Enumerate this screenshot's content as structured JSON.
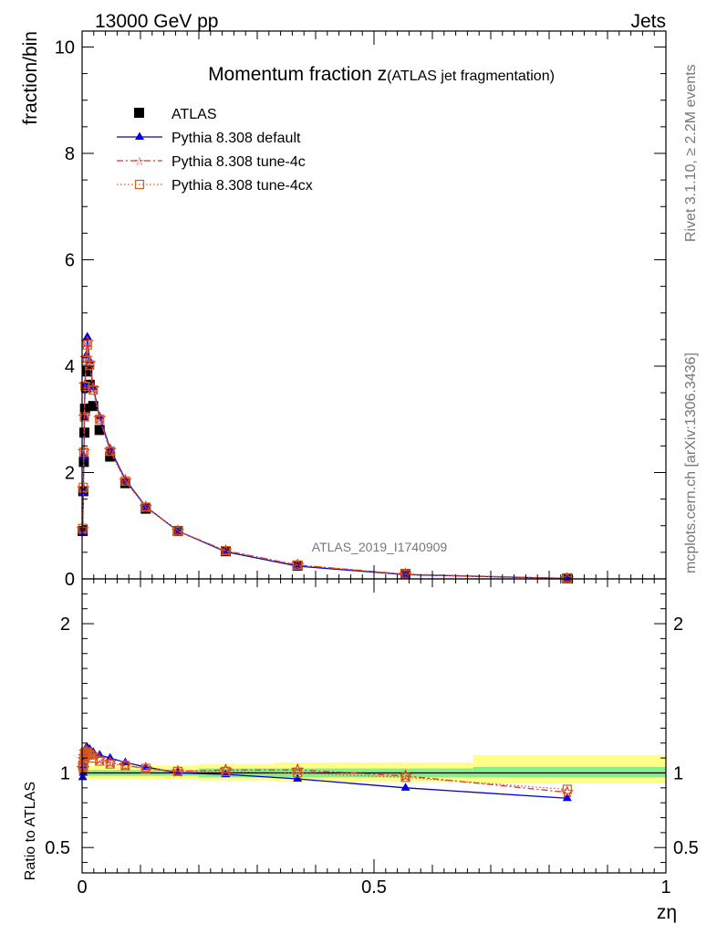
{
  "header": {
    "left": "13000 GeV pp",
    "right": "Jets"
  },
  "side_labels": {
    "rivet": "Rivet 3.1.10, ≥ 2.2M events",
    "mcplots": "mcplots.cern.ch [arXiv:1306.3436]"
  },
  "watermark": "ATLAS_2019_I1740909",
  "chart_data": [
    {
      "type": "scatter",
      "title_main": "Momentum fraction z",
      "title_sub": "(ATLAS jet fragmentation)",
      "ylabel": "fraction/bin",
      "xlim": [
        0,
        1
      ],
      "ylim": [
        0,
        10.3
      ],
      "yticks": [
        "0",
        "2",
        "4",
        "6",
        "8",
        "10"
      ],
      "legend_position": "top-left",
      "series": [
        {
          "name": "ATLAS",
          "color": "#000000",
          "marker": "square",
          "line": "none",
          "points": [
            [
              0.001,
              0.9
            ],
            [
              0.002,
              1.65
            ],
            [
              0.003,
              2.2
            ],
            [
              0.004,
              2.75
            ],
            [
              0.005,
              3.2
            ],
            [
              0.007,
              3.6
            ],
            [
              0.009,
              3.9
            ],
            [
              0.013,
              3.65
            ],
            [
              0.019,
              3.25
            ],
            [
              0.03,
              2.8
            ],
            [
              0.048,
              2.3
            ],
            [
              0.074,
              1.8
            ],
            [
              0.109,
              1.32
            ],
            [
              0.164,
              0.9
            ],
            [
              0.246,
              0.52
            ],
            [
              0.369,
              0.25
            ],
            [
              0.554,
              0.09
            ],
            [
              0.831,
              0.01
            ]
          ]
        },
        {
          "name": "Pythia 8.308 default",
          "color": "#0000dd",
          "marker": "triangle",
          "line": "solid",
          "points": [
            [
              0.001,
              0.87
            ],
            [
              0.002,
              1.62
            ],
            [
              0.003,
              2.3
            ],
            [
              0.004,
              3.05
            ],
            [
              0.005,
              3.65
            ],
            [
              0.007,
              4.2
            ],
            [
              0.009,
              4.55
            ],
            [
              0.013,
              4.1
            ],
            [
              0.019,
              3.6
            ],
            [
              0.03,
              3.05
            ],
            [
              0.048,
              2.45
            ],
            [
              0.074,
              1.87
            ],
            [
              0.109,
              1.36
            ],
            [
              0.164,
              0.9
            ],
            [
              0.246,
              0.51
            ],
            [
              0.369,
              0.24
            ],
            [
              0.554,
              0.08
            ],
            [
              0.831,
              0.008
            ]
          ]
        },
        {
          "name": "Pythia 8.308 tune-4c",
          "color": "#e03030",
          "marker": "star",
          "line": "dashdot",
          "points": [
            [
              0.001,
              0.93
            ],
            [
              0.002,
              1.7
            ],
            [
              0.003,
              2.4
            ],
            [
              0.004,
              3.05
            ],
            [
              0.005,
              3.65
            ],
            [
              0.007,
              4.15
            ],
            [
              0.009,
              4.45
            ],
            [
              0.013,
              4.05
            ],
            [
              0.019,
              3.58
            ],
            [
              0.03,
              3.02
            ],
            [
              0.048,
              2.42
            ],
            [
              0.074,
              1.85
            ],
            [
              0.109,
              1.35
            ],
            [
              0.164,
              0.9
            ],
            [
              0.246,
              0.53
            ],
            [
              0.369,
              0.26
            ],
            [
              0.554,
              0.088
            ],
            [
              0.831,
              0.009
            ]
          ]
        },
        {
          "name": "Pythia 8.308 tune-4cx",
          "color": "#d0601a",
          "marker": "open-square",
          "line": "dotted",
          "points": [
            [
              0.001,
              0.95
            ],
            [
              0.002,
              1.72
            ],
            [
              0.003,
              2.38
            ],
            [
              0.004,
              3.05
            ],
            [
              0.005,
              3.62
            ],
            [
              0.007,
              4.1
            ],
            [
              0.009,
              4.4
            ],
            [
              0.013,
              4.02
            ],
            [
              0.019,
              3.55
            ],
            [
              0.03,
              3.0
            ],
            [
              0.048,
              2.4
            ],
            [
              0.074,
              1.84
            ],
            [
              0.109,
              1.35
            ],
            [
              0.164,
              0.9
            ],
            [
              0.246,
              0.53
            ],
            [
              0.369,
              0.26
            ],
            [
              0.554,
              0.088
            ],
            [
              0.831,
              0.009
            ]
          ]
        }
      ]
    },
    {
      "type": "scatter",
      "ylabel": "Ratio to ATLAS",
      "xlabel": "zη",
      "xlim": [
        0,
        1
      ],
      "ylim": [
        0.33,
        2.3
      ],
      "xticks": [
        "0",
        "0.5",
        "1"
      ],
      "yticks": [
        "0.5",
        "1",
        "2"
      ],
      "reference_line": 1,
      "bands": {
        "outer_color": "#ffff88",
        "inner_color": "#88ee88",
        "outer": [
          [
            0,
            0.002,
            1.06,
            0.95
          ],
          [
            0.002,
            0.2,
            1.05,
            0.96
          ],
          [
            0.2,
            0.33,
            1.06,
            0.95
          ],
          [
            0.33,
            0.67,
            1.07,
            0.94
          ],
          [
            0.67,
            1.0,
            1.12,
            0.93
          ]
        ],
        "inner": [
          [
            0,
            0.2,
            1.02,
            0.98
          ],
          [
            0.2,
            0.67,
            1.03,
            0.97
          ],
          [
            0.67,
            1.0,
            1.04,
            0.97
          ]
        ]
      },
      "series": [
        {
          "name": "Pythia 8.308 default",
          "color": "#0000dd",
          "marker": "triangle",
          "line": "solid",
          "points": [
            [
              0.001,
              0.97
            ],
            [
              0.002,
              1.0
            ],
            [
              0.003,
              1.05
            ],
            [
              0.004,
              1.1
            ],
            [
              0.005,
              1.14
            ],
            [
              0.007,
              1.17
            ],
            [
              0.009,
              1.17
            ],
            [
              0.013,
              1.16
            ],
            [
              0.019,
              1.14
            ],
            [
              0.03,
              1.12
            ],
            [
              0.048,
              1.1
            ],
            [
              0.074,
              1.07
            ],
            [
              0.109,
              1.04
            ],
            [
              0.164,
              1.0
            ],
            [
              0.246,
              0.99
            ],
            [
              0.369,
              0.96
            ],
            [
              0.554,
              0.9
            ],
            [
              0.831,
              0.83
            ]
          ]
        },
        {
          "name": "Pythia 8.308 tune-4c",
          "color": "#e03030",
          "marker": "star",
          "line": "dashdot",
          "points": [
            [
              0.001,
              1.03
            ],
            [
              0.002,
              1.03
            ],
            [
              0.003,
              1.09
            ],
            [
              0.004,
              1.11
            ],
            [
              0.005,
              1.14
            ],
            [
              0.007,
              1.15
            ],
            [
              0.009,
              1.14
            ],
            [
              0.013,
              1.13
            ],
            [
              0.019,
              1.12
            ],
            [
              0.03,
              1.09
            ],
            [
              0.048,
              1.07
            ],
            [
              0.074,
              1.05
            ],
            [
              0.109,
              1.03
            ],
            [
              0.164,
              1.01
            ],
            [
              0.246,
              1.02
            ],
            [
              0.369,
              1.02
            ],
            [
              0.554,
              0.98
            ],
            [
              0.831,
              0.87
            ]
          ]
        },
        {
          "name": "Pythia 8.308 tune-4cx",
          "color": "#d0601a",
          "marker": "open-square",
          "line": "dotted",
          "points": [
            [
              0.001,
              1.05
            ],
            [
              0.002,
              1.04
            ],
            [
              0.003,
              1.08
            ],
            [
              0.004,
              1.11
            ],
            [
              0.005,
              1.13
            ],
            [
              0.007,
              1.14
            ],
            [
              0.009,
              1.13
            ],
            [
              0.013,
              1.12
            ],
            [
              0.019,
              1.1
            ],
            [
              0.03,
              1.08
            ],
            [
              0.048,
              1.06
            ],
            [
              0.074,
              1.05
            ],
            [
              0.109,
              1.03
            ],
            [
              0.164,
              1.01
            ],
            [
              0.246,
              1.01
            ],
            [
              0.369,
              1.0
            ],
            [
              0.554,
              0.97
            ],
            [
              0.831,
              0.89
            ]
          ]
        }
      ]
    }
  ]
}
